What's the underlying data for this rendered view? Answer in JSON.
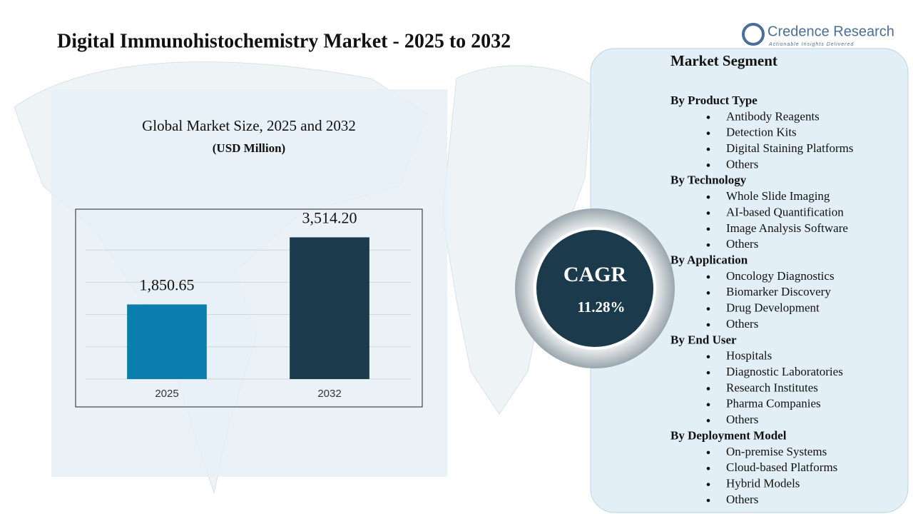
{
  "title": "Digital Immunohistochemistry Market - 2025 to 2032",
  "brand": {
    "name": "Credence Research",
    "tagline": "Actionable Insights Delivered"
  },
  "chart_data": {
    "type": "bar",
    "title": "Global Market Size, 2025 and 2032",
    "subtitle": "(USD Million)",
    "categories": [
      "2025",
      "2032"
    ],
    "values": [
      1850.65,
      3514.2
    ],
    "value_labels": [
      "1,850.65",
      "3,514.20"
    ],
    "colors": [
      "#0a7fad",
      "#1b3a4b"
    ],
    "ylim": [
      0,
      4000
    ],
    "yticks": [
      0,
      800,
      1600,
      2400,
      3200
    ],
    "grid": true
  },
  "cagr": {
    "label": "CAGR",
    "value": "11.28%"
  },
  "segments": {
    "title": "Market Segment",
    "groups": [
      {
        "name": "By Product Type",
        "items": [
          "Antibody Reagents",
          "Detection Kits",
          "Digital Staining Platforms",
          "Others"
        ]
      },
      {
        "name": "By Technology",
        "items": [
          "Whole Slide Imaging",
          "AI-based Quantification",
          "Image Analysis Software",
          "Others"
        ]
      },
      {
        "name": "By Application",
        "items": [
          "Oncology Diagnostics",
          "Biomarker Discovery",
          "Drug Development",
          "Others"
        ]
      },
      {
        "name": "By End User",
        "items": [
          "Hospitals",
          "Diagnostic Laboratories",
          "Research Institutes",
          "Pharma Companies",
          "Others"
        ]
      },
      {
        "name": "By Deployment Model",
        "items": [
          "On-premise Systems",
          "Cloud-based Platforms",
          "Hybrid Models",
          "Others"
        ]
      }
    ]
  }
}
